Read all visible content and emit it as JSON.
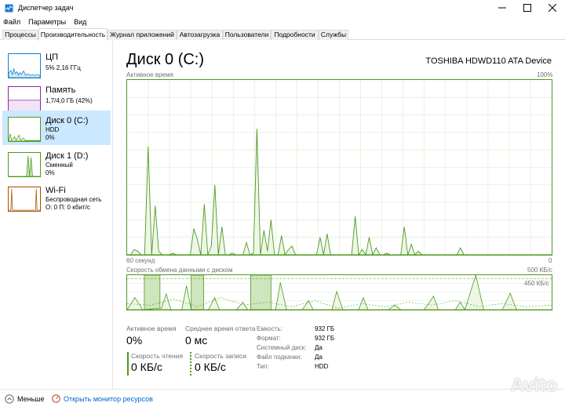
{
  "window": {
    "title": "Диспетчер задач",
    "controls": [
      "—",
      "☐",
      "✕"
    ]
  },
  "menu": {
    "items": [
      "Файл",
      "Параметры",
      "Вид"
    ]
  },
  "tabs": [
    {
      "label": "Процессы"
    },
    {
      "label": "Производительность"
    },
    {
      "label": "Журнал приложений"
    },
    {
      "label": "Автозагрузка"
    },
    {
      "label": "Пользователи"
    },
    {
      "label": "Подробности"
    },
    {
      "label": "Службы"
    }
  ],
  "active_tab": "Производительность",
  "sidebar": {
    "items": [
      {
        "title": "ЦП",
        "lines": [
          "5%  2,16 ГГц"
        ],
        "color": "#1180c6"
      },
      {
        "title": "Память",
        "lines": [
          "1,7/4,0 ГБ (42%)"
        ],
        "color": "#8b2aa6"
      },
      {
        "title": "Диск 0 (C:)",
        "lines": [
          "HDD",
          "0%"
        ],
        "color": "#4d9a1f"
      },
      {
        "title": "Диск 1 (D:)",
        "lines": [
          "Сменный",
          "0%"
        ],
        "color": "#4d9a1f"
      },
      {
        "title": "Wi-Fi",
        "lines": [
          "Беспроводная сеть",
          "О: 0 П: 0 кбит/с"
        ],
        "color": "#a74f01"
      }
    ]
  },
  "main": {
    "title": "Диск 0 (C:)",
    "device": "TOSHIBA HDWD110 ATA Device",
    "chart1": {
      "label": "Активное время",
      "max_label": "100%",
      "x_left": "60 секунд",
      "x_right": "0"
    },
    "chart2": {
      "label": "Скорость обмена данными с диском",
      "max_label": "500 КБ/с",
      "line_label": "450 КБ/с",
      "x_left": "60 секунд",
      "x_right": "0"
    },
    "stats": {
      "active_time_label": "Активное время",
      "active_time_value": "0%",
      "avg_response_label": "Среднее время ответа",
      "avg_response_value": "0 мс",
      "read_speed_label": "Скорость чтения",
      "read_speed_value": "0 КБ/с",
      "write_speed_label": "Скорость записи",
      "write_speed_value": "0 КБ/с"
    },
    "properties": [
      {
        "key": "Емкость:",
        "value": "932 ГБ"
      },
      {
        "key": "Формат:",
        "value": "932 ГБ"
      },
      {
        "key": "Системный диск:",
        "value": "Да"
      },
      {
        "key": "Файл подкачки:",
        "value": "Да"
      },
      {
        "key": "Тип:",
        "value": "HDD"
      }
    ]
  },
  "footer": {
    "less_label": "Меньше",
    "monitor_label": "Открыть монитор ресурсов"
  },
  "watermark": "Avito",
  "colors": {
    "disk": "#4d9a1f",
    "disk_fill": "#eef6e7",
    "grid": "#d7ebc9",
    "link": "#0066cc"
  },
  "chart_data": {
    "type": "area",
    "active_time": [
      0,
      0,
      3,
      2,
      0,
      0,
      62,
      0,
      28,
      2,
      0,
      0,
      0,
      1,
      0,
      0,
      0,
      0,
      0,
      15,
      9,
      0,
      29,
      0,
      5,
      40,
      0,
      16,
      0,
      0,
      1,
      0,
      0,
      0,
      7,
      0,
      1,
      72,
      0,
      14,
      2,
      20,
      0,
      0,
      11,
      0,
      3,
      5,
      0,
      0,
      0,
      0,
      0,
      0,
      0,
      10,
      0,
      12,
      0,
      0,
      0,
      0,
      0,
      0,
      0,
      22,
      0,
      3,
      0,
      10,
      0,
      4,
      0,
      0,
      1,
      0,
      0,
      0,
      0,
      16,
      0,
      6,
      0,
      2,
      0,
      0,
      0,
      0,
      0,
      0,
      0,
      0,
      0,
      0,
      0,
      4,
      0,
      0,
      0,
      0,
      0,
      0,
      0,
      0,
      0,
      0,
      0,
      0,
      0,
      0,
      0,
      0,
      0,
      0,
      0,
      0,
      0,
      0,
      0,
      0,
      0,
      0
    ]
  }
}
